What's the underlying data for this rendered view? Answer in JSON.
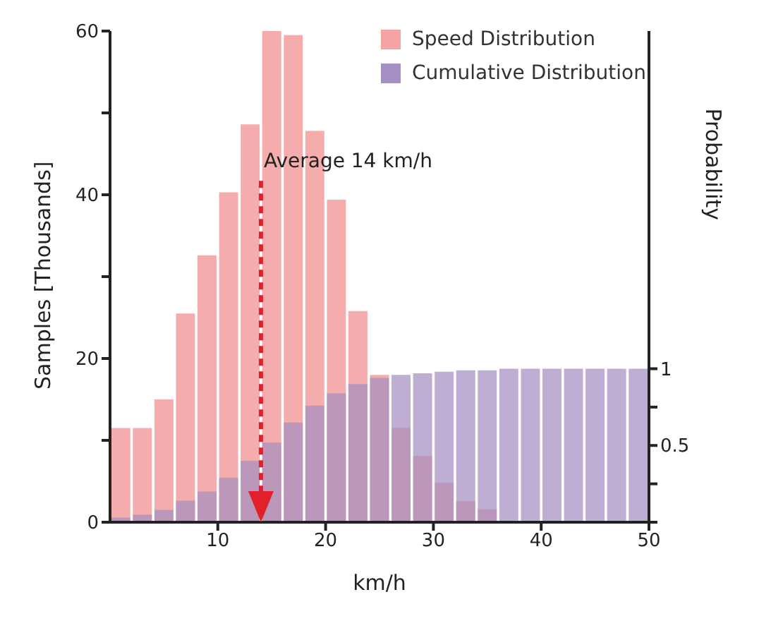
{
  "chart_data": {
    "type": "histogram",
    "xlabel": "km/h",
    "ylabel": "Samples [Thousands]",
    "y2label": "Probability",
    "bins": [
      0,
      2,
      4,
      6,
      8,
      10,
      12,
      14,
      16,
      18,
      20,
      22,
      24,
      26,
      28,
      30,
      32,
      34,
      36,
      38,
      40,
      42,
      44,
      46,
      48,
      50
    ],
    "series": [
      {
        "name": "Speed Distribution",
        "color": "#f4a3a3",
        "values": [
          11.5,
          11.5,
          15,
          25.5,
          32.6,
          40.3,
          48.6,
          60,
          59.5,
          47.8,
          39.4,
          25.8,
          18,
          11.5,
          8.1,
          4.8,
          2.6,
          1.6,
          null,
          null,
          null,
          null,
          0.1,
          0.1,
          0
        ]
      },
      {
        "name": "Cumulative Distribution",
        "color": "#a68fc2",
        "axis": "y2",
        "values": [
          0.03,
          0.05,
          0.08,
          0.14,
          0.2,
          0.29,
          0.4,
          0.52,
          0.65,
          0.76,
          0.84,
          0.9,
          0.94,
          0.96,
          0.97,
          0.98,
          0.99,
          0.99,
          1,
          1,
          1,
          1,
          1,
          1,
          1
        ]
      }
    ],
    "xlim": [
      0,
      50
    ],
    "xticks": [
      10,
      20,
      30,
      40,
      50
    ],
    "ylim": [
      0,
      60
    ],
    "yticks": [
      0,
      {
        "value": 10,
        "label": null
      },
      20,
      {
        "value": 30,
        "label": null
      },
      40,
      {
        "value": 50,
        "label": null
      },
      60
    ],
    "y2lim": [
      0,
      3.2
    ],
    "y2ticks": [
      {
        "value": 0,
        "label": null
      },
      {
        "value": 0.25,
        "label": null
      },
      0.5,
      {
        "value": 0.75,
        "label": null
      },
      1
    ],
    "ref_lines": [
      {
        "axis": "x",
        "value": 14,
        "label": "Average 14 km/h",
        "color": "#e0202a",
        "line_style": "dashed"
      }
    ],
    "legend": "top right"
  }
}
